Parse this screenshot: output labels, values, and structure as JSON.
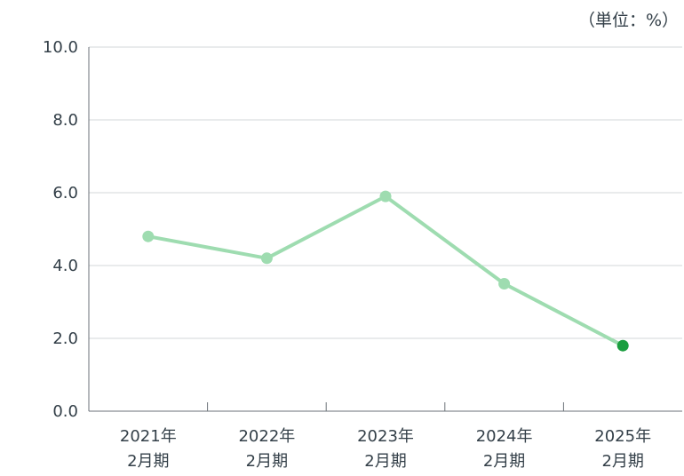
{
  "unit_label": "（単位：%）",
  "chart_data": {
    "type": "line",
    "categories": [
      [
        "2021年",
        "2月期"
      ],
      [
        "2022年",
        "2月期"
      ],
      [
        "2023年",
        "2月期"
      ],
      [
        "2024年",
        "2月期"
      ],
      [
        "2025年",
        "2月期"
      ]
    ],
    "series": [
      {
        "values": [
          4.8,
          4.2,
          5.9,
          3.5,
          1.8
        ]
      }
    ],
    "ylim": [
      0,
      10
    ],
    "yticks": [
      "0.0",
      "2.0",
      "4.0",
      "6.0",
      "8.0",
      "10.0"
    ],
    "grid": true,
    "colors": {
      "line": "#9edcb0",
      "point": "#9edcb0",
      "highlight_point": "#1a9e3f",
      "grid": "#d3d7da",
      "axis": "#6b7278"
    }
  }
}
